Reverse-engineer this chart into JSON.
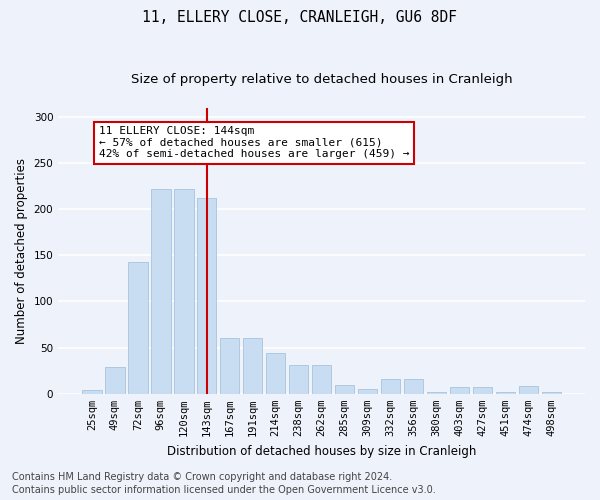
{
  "title": "11, ELLERY CLOSE, CRANLEIGH, GU6 8DF",
  "subtitle": "Size of property relative to detached houses in Cranleigh",
  "xlabel": "Distribution of detached houses by size in Cranleigh",
  "ylabel": "Number of detached properties",
  "categories": [
    "25sqm",
    "49sqm",
    "72sqm",
    "96sqm",
    "120sqm",
    "143sqm",
    "167sqm",
    "191sqm",
    "214sqm",
    "238sqm",
    "262sqm",
    "285sqm",
    "309sqm",
    "332sqm",
    "356sqm",
    "380sqm",
    "403sqm",
    "427sqm",
    "451sqm",
    "474sqm",
    "498sqm"
  ],
  "values": [
    4,
    29,
    143,
    222,
    222,
    212,
    60,
    60,
    44,
    31,
    31,
    10,
    5,
    16,
    16,
    2,
    7,
    7,
    2,
    8,
    2
  ],
  "bar_color": "#c9ddf2",
  "bar_edge_color": "#a8c4e0",
  "vline_x_index": 5,
  "vline_color": "#cc0000",
  "annotation_text": "11 ELLERY CLOSE: 144sqm\n← 57% of detached houses are smaller (615)\n42% of semi-detached houses are larger (459) →",
  "annotation_box_color": "#ffffff",
  "annotation_box_edge": "#cc0000",
  "ylim": [
    0,
    310
  ],
  "yticks": [
    0,
    50,
    100,
    150,
    200,
    250,
    300
  ],
  "footer_line1": "Contains HM Land Registry data © Crown copyright and database right 2024.",
  "footer_line2": "Contains public sector information licensed under the Open Government Licence v3.0.",
  "background_color": "#eef2fa",
  "grid_color": "#ffffff",
  "title_fontsize": 10.5,
  "subtitle_fontsize": 9.5,
  "axis_label_fontsize": 8.5,
  "tick_fontsize": 7.5,
  "annotation_fontsize": 8,
  "footer_fontsize": 7
}
